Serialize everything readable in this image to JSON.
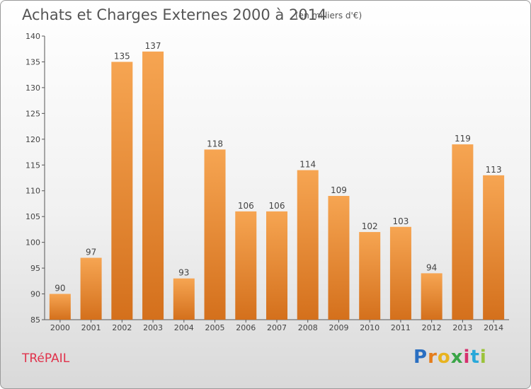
{
  "header": {
    "title": "Achats et Charges Externes 2000 à 2014",
    "unit": "(en milliers d'€)"
  },
  "footer": {
    "town": "TRéPAIL",
    "logo_letters": [
      "P",
      "r",
      "o",
      "x",
      "i",
      "t",
      "i"
    ]
  },
  "colors": {
    "bar_light": "#f6a552",
    "bar_dark": "#d4701c",
    "axis": "#555555",
    "title": "#555555",
    "town": "#e0324b"
  },
  "chart_data": {
    "type": "bar",
    "title": "Achats et Charges Externes 2000 à 2014",
    "subtitle": "(en milliers d'€)",
    "categories": [
      "2000",
      "2001",
      "2002",
      "2003",
      "2004",
      "2005",
      "2006",
      "2007",
      "2008",
      "2009",
      "2010",
      "2011",
      "2012",
      "2013",
      "2014"
    ],
    "values": [
      90,
      97,
      135,
      137,
      93,
      118,
      106,
      106,
      114,
      109,
      102,
      103,
      94,
      119,
      113
    ],
    "xlabel": "",
    "ylabel": "",
    "ylim": [
      85,
      140
    ],
    "yticks": [
      85,
      90,
      95,
      100,
      105,
      110,
      115,
      120,
      125,
      130,
      135,
      140
    ],
    "grid": false,
    "legend": "none",
    "data_labels": true
  }
}
